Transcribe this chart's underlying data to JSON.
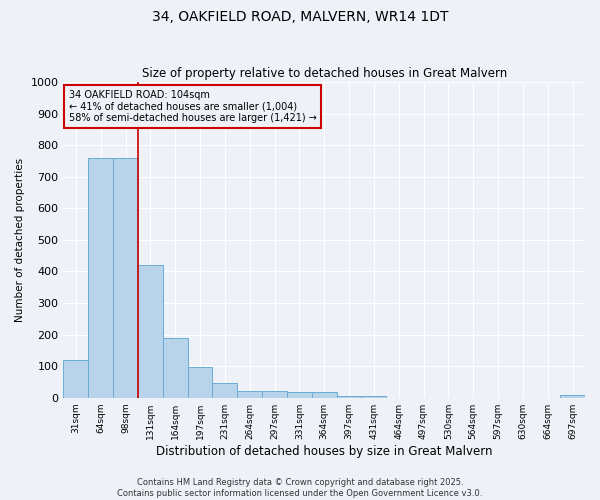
{
  "title": "34, OAKFIELD ROAD, MALVERN, WR14 1DT",
  "subtitle": "Size of property relative to detached houses in Great Malvern",
  "xlabel": "Distribution of detached houses by size in Great Malvern",
  "ylabel": "Number of detached properties",
  "bar_color": "#b8d4ea",
  "bar_edge_color": "#6aadd5",
  "background_color": "#eef2f8",
  "grid_color": "#ffffff",
  "categories": [
    "31sqm",
    "64sqm",
    "98sqm",
    "131sqm",
    "164sqm",
    "197sqm",
    "231sqm",
    "264sqm",
    "297sqm",
    "331sqm",
    "364sqm",
    "397sqm",
    "431sqm",
    "464sqm",
    "497sqm",
    "530sqm",
    "564sqm",
    "597sqm",
    "630sqm",
    "664sqm",
    "697sqm"
  ],
  "values": [
    118,
    760,
    760,
    420,
    190,
    98,
    48,
    22,
    22,
    18,
    18,
    5,
    5,
    0,
    0,
    0,
    0,
    0,
    0,
    0,
    8
  ],
  "ylim": [
    0,
    1000
  ],
  "yticks": [
    0,
    100,
    200,
    300,
    400,
    500,
    600,
    700,
    800,
    900,
    1000
  ],
  "property_label": "34 OAKFIELD ROAD: 104sqm",
  "pct_smaller": 41,
  "n_smaller": 1004,
  "pct_larger_semi": 58,
  "n_larger_semi": 1421,
  "vline_x_index": 2.5,
  "annotation_box_color": "#cc0000",
  "footer_line1": "Contains HM Land Registry data © Crown copyright and database right 2025.",
  "footer_line2": "Contains public sector information licensed under the Open Government Licence v3.0."
}
